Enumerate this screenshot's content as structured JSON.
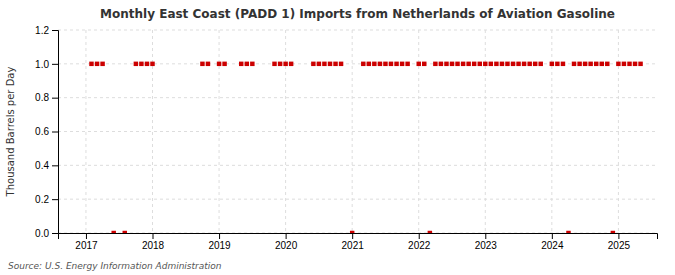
{
  "chart_data": {
    "type": "scatter",
    "title": "Monthly East Coast (PADD 1) Imports from Netherlands of Aviation Gasoline",
    "ylabel": "Thousand Barrels per Day",
    "source": "Source: U.S. Energy Information Administration",
    "color": "#cc0000",
    "marker": "square",
    "grid": true,
    "xlim": [
      2016.58,
      2025.58
    ],
    "xticks": [
      2017,
      2018,
      2019,
      2020,
      2021,
      2022,
      2023,
      2024,
      2025
    ],
    "ylim": [
      0.0,
      1.2
    ],
    "yticks": [
      {
        "value": 0.0,
        "label": "0.0"
      },
      0.2,
      0.4,
      0.6,
      0.8,
      {
        "value": 1.0,
        "label": "1.0"
      },
      1.2
    ],
    "x": [
      2017.083,
      2017.167,
      2017.25,
      2017.417,
      2017.583,
      2017.75,
      2017.833,
      2017.917,
      2018.0,
      2018.75,
      2018.833,
      2019.0,
      2019.083,
      2019.333,
      2019.417,
      2019.5,
      2019.833,
      2019.917,
      2020.0,
      2020.083,
      2020.417,
      2020.5,
      2020.583,
      2020.667,
      2020.75,
      2020.833,
      2021.0,
      2021.167,
      2021.25,
      2021.333,
      2021.417,
      2021.5,
      2021.583,
      2021.667,
      2021.75,
      2021.833,
      2022.0,
      2022.083,
      2022.167,
      2022.25,
      2022.333,
      2022.417,
      2022.5,
      2022.583,
      2022.667,
      2022.75,
      2022.833,
      2022.917,
      2023.0,
      2023.083,
      2023.167,
      2023.25,
      2023.333,
      2023.417,
      2023.5,
      2023.583,
      2023.667,
      2023.75,
      2023.833,
      2024.0,
      2024.083,
      2024.167,
      2024.25,
      2024.333,
      2024.417,
      2024.5,
      2024.583,
      2024.667,
      2024.75,
      2024.833,
      2024.917,
      2025.0,
      2025.083,
      2025.167,
      2025.25,
      2025.333
    ],
    "values": [
      1.0,
      1.0,
      1.0,
      0.0,
      0.0,
      1.0,
      1.0,
      1.0,
      1.0,
      1.0,
      1.0,
      1.0,
      1.0,
      1.0,
      1.0,
      1.0,
      1.0,
      1.0,
      1.0,
      1.0,
      1.0,
      1.0,
      1.0,
      1.0,
      1.0,
      1.0,
      0.0,
      1.0,
      1.0,
      1.0,
      1.0,
      1.0,
      1.0,
      1.0,
      1.0,
      1.0,
      1.0,
      1.0,
      0.0,
      1.0,
      1.0,
      1.0,
      1.0,
      1.0,
      1.0,
      1.0,
      1.0,
      1.0,
      1.0,
      1.0,
      1.0,
      1.0,
      1.0,
      1.0,
      1.0,
      1.0,
      1.0,
      1.0,
      1.0,
      1.0,
      1.0,
      1.0,
      0.0,
      1.0,
      1.0,
      1.0,
      1.0,
      1.0,
      1.0,
      1.0,
      0.0,
      1.0,
      1.0,
      1.0,
      1.0,
      1.0
    ]
  }
}
